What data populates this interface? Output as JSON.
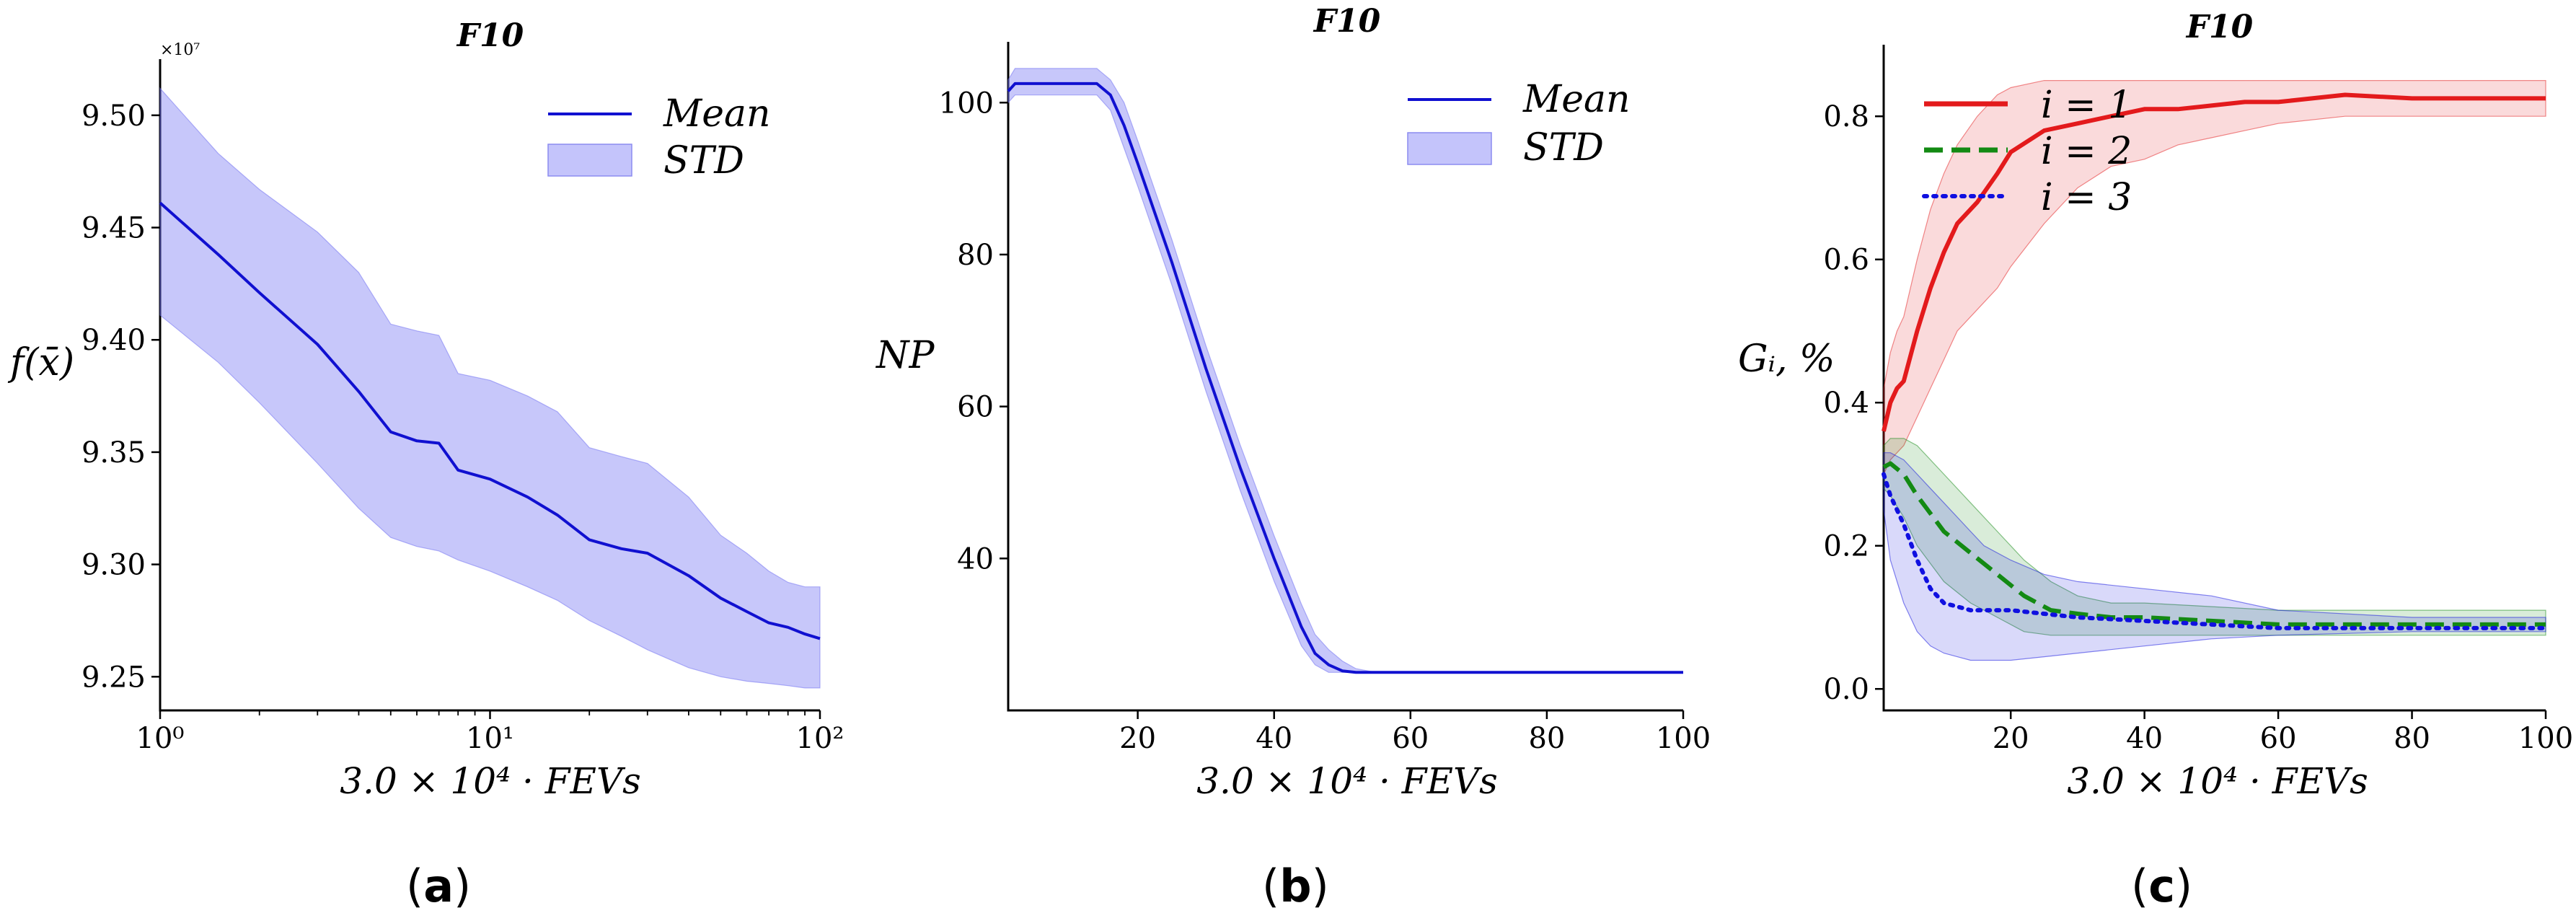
{
  "chart_data": [
    {
      "type": "line",
      "panel": "a",
      "caption_letter": "a",
      "title": "F10",
      "xlabel": "3.0 × 10⁴ · FEVs",
      "ylabel": "f(x̄)",
      "xscale": "log",
      "xlim": [
        1,
        100
      ],
      "ylim": [
        9.235,
        9.525
      ],
      "multiplier": "×10⁷",
      "xticks": [
        1,
        10,
        100
      ],
      "xtick_labels": [
        "10⁰",
        "10¹",
        "10²"
      ],
      "yticks": [
        9.25,
        9.3,
        9.35,
        9.4,
        9.45,
        9.5
      ],
      "ytick_labels": [
        "9.25",
        "9.30",
        "9.35",
        "9.40",
        "9.45",
        "9.50"
      ],
      "legend": {
        "position": "top-right",
        "entries": [
          "Mean",
          "STD"
        ]
      },
      "series": [
        {
          "name": "Mean",
          "color": "#1010d0",
          "x": [
            1,
            1.5,
            2,
            3,
            4,
            5,
            6,
            7,
            8,
            10,
            13,
            16,
            20,
            25,
            30,
            40,
            50,
            60,
            70,
            80,
            90,
            100
          ],
          "y": [
            9.461,
            9.438,
            9.421,
            9.398,
            9.377,
            9.359,
            9.355,
            9.354,
            9.342,
            9.338,
            9.33,
            9.322,
            9.311,
            9.307,
            9.305,
            9.295,
            9.285,
            9.279,
            9.274,
            9.272,
            9.269,
            9.267
          ],
          "lower": [
            9.411,
            9.39,
            9.372,
            9.345,
            9.325,
            9.312,
            9.308,
            9.306,
            9.302,
            9.297,
            9.29,
            9.284,
            9.275,
            9.268,
            9.262,
            9.254,
            9.25,
            9.248,
            9.247,
            9.246,
            9.245,
            9.245
          ],
          "upper": [
            9.512,
            9.483,
            9.467,
            9.448,
            9.43,
            9.407,
            9.404,
            9.402,
            9.385,
            9.382,
            9.375,
            9.368,
            9.352,
            9.348,
            9.345,
            9.33,
            9.313,
            9.305,
            9.297,
            9.292,
            9.29,
            9.29
          ]
        }
      ]
    },
    {
      "type": "line",
      "panel": "b",
      "caption_letter": "b",
      "title": "F10",
      "xlabel": "3.0 × 10⁴ · FEVs",
      "ylabel": "NP",
      "xlim": [
        1,
        100
      ],
      "ylim": [
        20,
        108
      ],
      "xticks": [
        20,
        40,
        60,
        80,
        100
      ],
      "yticks": [
        40,
        60,
        80,
        100
      ],
      "legend": {
        "position": "top-right",
        "entries": [
          "Mean",
          "STD"
        ]
      },
      "series": [
        {
          "name": "Mean",
          "color": "#1010d0",
          "x": [
            1,
            2,
            5,
            10,
            14,
            16,
            18,
            20,
            25,
            30,
            35,
            40,
            44,
            46,
            48,
            50,
            52,
            55,
            60,
            100
          ],
          "y": [
            101.5,
            102.5,
            102.5,
            102.5,
            102.5,
            101,
            97,
            92,
            79,
            65,
            52,
            40,
            31,
            27.5,
            26,
            25.2,
            25,
            25,
            25,
            25
          ],
          "lower": [
            100,
            101,
            101,
            101,
            101,
            99,
            94,
            89,
            76,
            62,
            49,
            37,
            28.5,
            26,
            25,
            25,
            25,
            25,
            25,
            25
          ],
          "upper": [
            103,
            104.5,
            104.5,
            104.5,
            104.5,
            103,
            100,
            95,
            82,
            68,
            55,
            43,
            34,
            30,
            28,
            26.5,
            25.5,
            25,
            25,
            25
          ]
        }
      ]
    },
    {
      "type": "line",
      "panel": "c",
      "caption_letter": "c",
      "title": "F10",
      "xlabel": "3.0 × 10⁴ · FEVs",
      "ylabel": "Gᵢ, %",
      "xlim": [
        1,
        100
      ],
      "ylim": [
        -0.03,
        0.9
      ],
      "xticks": [
        20,
        40,
        60,
        80,
        100
      ],
      "yticks": [
        0.0,
        0.2,
        0.4,
        0.6,
        0.8
      ],
      "ytick_labels": [
        "0.0",
        "0.2",
        "0.4",
        "0.6",
        "0.8"
      ],
      "legend": {
        "position": "top-left",
        "entries": [
          "i = 1",
          "i = 2",
          "i = 3"
        ]
      },
      "series": [
        {
          "name": "i = 1",
          "color": "#e31a1c",
          "style": "solid",
          "x": [
            1,
            2,
            3,
            4,
            6,
            8,
            10,
            12,
            15,
            18,
            20,
            25,
            30,
            35,
            40,
            45,
            50,
            55,
            60,
            70,
            80,
            90,
            100
          ],
          "y": [
            0.36,
            0.4,
            0.42,
            0.43,
            0.5,
            0.56,
            0.61,
            0.65,
            0.68,
            0.72,
            0.75,
            0.78,
            0.79,
            0.8,
            0.81,
            0.81,
            0.815,
            0.82,
            0.82,
            0.83,
            0.825,
            0.825,
            0.825
          ],
          "lower": [
            0.3,
            0.32,
            0.33,
            0.34,
            0.38,
            0.42,
            0.46,
            0.5,
            0.53,
            0.56,
            0.59,
            0.65,
            0.7,
            0.73,
            0.74,
            0.76,
            0.77,
            0.78,
            0.79,
            0.8,
            0.8,
            0.8,
            0.8
          ],
          "upper": [
            0.42,
            0.47,
            0.5,
            0.52,
            0.6,
            0.67,
            0.72,
            0.76,
            0.8,
            0.83,
            0.84,
            0.85,
            0.85,
            0.85,
            0.85,
            0.85,
            0.85,
            0.85,
            0.85,
            0.85,
            0.85,
            0.85,
            0.85
          ]
        },
        {
          "name": "i = 2",
          "color": "#138a13",
          "style": "dashed",
          "x": [
            1,
            2,
            4,
            6,
            10,
            14,
            18,
            22,
            26,
            30,
            35,
            40,
            50,
            60,
            70,
            80,
            90,
            100
          ],
          "y": [
            0.31,
            0.315,
            0.3,
            0.27,
            0.22,
            0.19,
            0.16,
            0.13,
            0.11,
            0.105,
            0.1,
            0.1,
            0.095,
            0.09,
            0.09,
            0.09,
            0.09,
            0.09
          ],
          "lower": [
            0.28,
            0.27,
            0.24,
            0.2,
            0.15,
            0.12,
            0.1,
            0.08,
            0.075,
            0.075,
            0.075,
            0.075,
            0.075,
            0.075,
            0.075,
            0.075,
            0.075,
            0.075
          ],
          "upper": [
            0.34,
            0.35,
            0.35,
            0.34,
            0.3,
            0.26,
            0.22,
            0.18,
            0.15,
            0.13,
            0.12,
            0.12,
            0.115,
            0.11,
            0.11,
            0.11,
            0.11,
            0.11
          ]
        },
        {
          "name": "i = 3",
          "color": "#1010e0",
          "style": "dotted",
          "x": [
            1,
            2,
            4,
            6,
            8,
            10,
            12,
            14,
            16,
            20,
            25,
            30,
            40,
            50,
            60,
            80,
            100
          ],
          "y": [
            0.3,
            0.27,
            0.23,
            0.18,
            0.14,
            0.12,
            0.115,
            0.11,
            0.11,
            0.11,
            0.105,
            0.1,
            0.095,
            0.09,
            0.085,
            0.085,
            0.085
          ],
          "lower": [
            0.25,
            0.18,
            0.12,
            0.08,
            0.06,
            0.05,
            0.045,
            0.04,
            0.04,
            0.04,
            0.045,
            0.05,
            0.06,
            0.07,
            0.075,
            0.08,
            0.08
          ],
          "upper": [
            0.33,
            0.33,
            0.32,
            0.3,
            0.28,
            0.26,
            0.24,
            0.22,
            0.2,
            0.18,
            0.16,
            0.15,
            0.14,
            0.13,
            0.11,
            0.1,
            0.1
          ]
        }
      ]
    }
  ]
}
